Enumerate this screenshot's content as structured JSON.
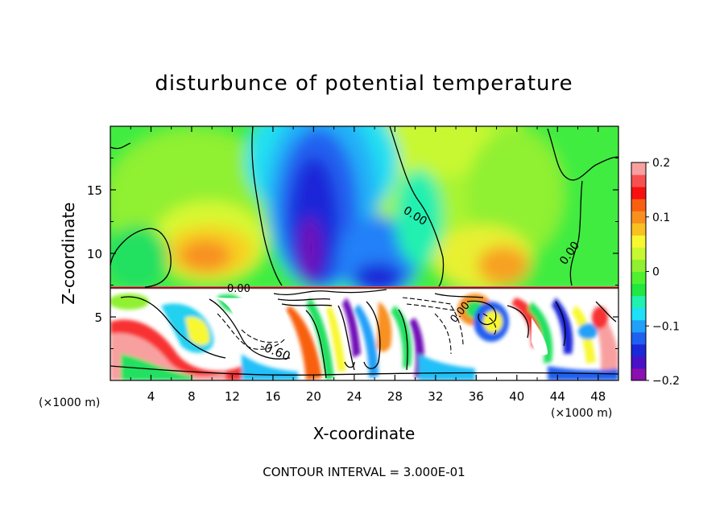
{
  "chart_data": {
    "type": "heatmap",
    "title": "disturbunce of potential temperature",
    "xlabel": "X-coordinate",
    "ylabel": "Z-coordinate",
    "x_unit_label": "(×1000 m)",
    "z_unit_label": "(×1000 m)",
    "xlim": [
      0,
      50
    ],
    "ylim": [
      0,
      20
    ],
    "x_ticks": [
      4,
      8,
      12,
      16,
      20,
      24,
      28,
      32,
      36,
      40,
      44,
      48
    ],
    "y_ticks": [
      5,
      10,
      15
    ],
    "colorbar": {
      "range": [
        -0.2,
        0.2
      ],
      "ticks": [
        0.2,
        0.1,
        0,
        -0.1,
        -0.2
      ],
      "tick_labels": [
        "0.2",
        "0.1",
        "0",
        "−0.1",
        "−0.2"
      ],
      "colors": [
        "#8a10b0",
        "#4a10c8",
        "#1a28d8",
        "#2060f0",
        "#20a0f8",
        "#20e0f8",
        "#20f0b0",
        "#20e840",
        "#50f030",
        "#90f030",
        "#c8f830",
        "#f8f830",
        "#f8c020",
        "#f89020",
        "#f86010",
        "#f81010",
        "#f85050",
        "#f8a0a0"
      ]
    },
    "contour_labels": [
      "0.00",
      "0.00",
      "0.00",
      "0.00",
      "-0.60"
    ],
    "contour_interval_text": "CONTOUR INTERVAL = 3.000E-01"
  }
}
